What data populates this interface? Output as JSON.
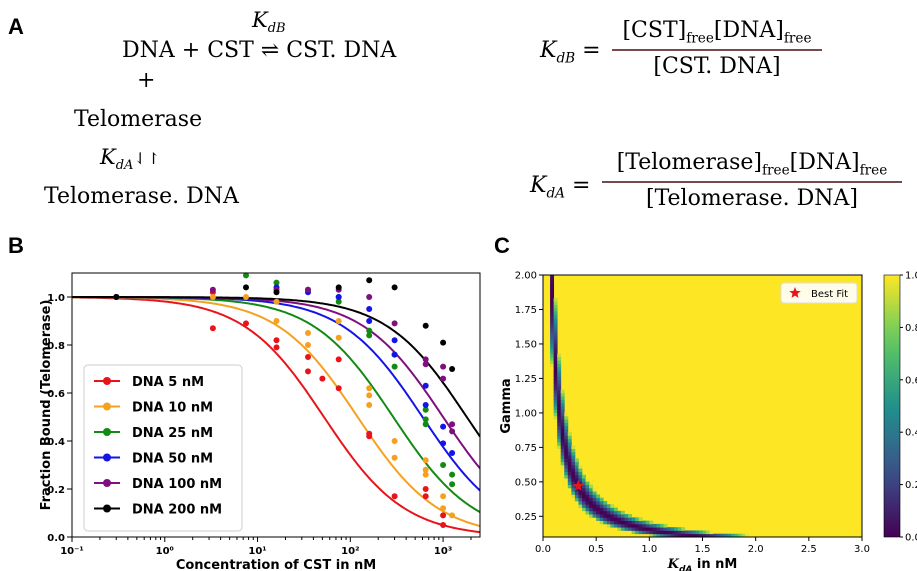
{
  "panelA": {
    "letter": "A",
    "kdb_label": "K",
    "kdb_sub": "dB",
    "rxn1": "DNA + CST  ⇌ CST. DNA",
    "plus": "+",
    "telomerase": "Telomerase",
    "kda_label": "K",
    "kda_sub": "dA",
    "kda_arrow": "⇃↾",
    "telo_dna": "Telomerase. DNA",
    "eq1_lhs": "K",
    "eq1_lhs_sub": "dB",
    "eq1_num": "[CST]free[DNA]free",
    "eq1_num_a": "[CST]",
    "eq1_num_b": "free",
    "eq1_num_c": "[DNA]",
    "eq1_num_d": "free",
    "eq1_den": "[CST. DNA]",
    "eq2_lhs": "K",
    "eq2_lhs_sub": "dA",
    "eq2_num_a": "[Telomerase]",
    "eq2_num_b": "free",
    "eq2_num_c": "[DNA]",
    "eq2_num_d": "free",
    "eq2_den": "[Telomerase. DNA]"
  },
  "panelB": {
    "letter": "B"
  },
  "panelC": {
    "letter": "C"
  },
  "chart_data": [
    {
      "type": "line",
      "xlabel": "Concentration of CST in nM",
      "ylabel": "Fraction Bound (Telomerase)",
      "xscale": "log",
      "xlim": [
        0.1,
        2500
      ],
      "ylim": [
        0.0,
        1.1
      ],
      "xticks": [
        "10⁻¹",
        "10⁰",
        "10¹",
        "10²",
        "10³"
      ],
      "yticks": [
        "0.0",
        "0.2",
        "0.4",
        "0.6",
        "0.8",
        "1.0"
      ],
      "legend_position": "lower-left",
      "series": [
        {
          "name": "DNA 5 nM",
          "color": "#e8141b",
          "ec50": 52,
          "points": [
            [
              0.3,
              1.0
            ],
            [
              3.3,
              1.02
            ],
            [
              3.3,
              0.87
            ],
            [
              7.5,
              0.89
            ],
            [
              16,
              0.82
            ],
            [
              16,
              0.79
            ],
            [
              35,
              0.75
            ],
            [
              35,
              0.69
            ],
            [
              50,
              0.66
            ],
            [
              75,
              0.62
            ],
            [
              75,
              0.74
            ],
            [
              160,
              0.42
            ],
            [
              160,
              0.43
            ],
            [
              300,
              0.17
            ],
            [
              650,
              0.2
            ],
            [
              650,
              0.17
            ],
            [
              1000,
              0.05
            ],
            [
              1000,
              0.09
            ]
          ]
        },
        {
          "name": "DNA 10 nM",
          "color": "#f5a11f",
          "ec50": 120,
          "points": [
            [
              0.3,
              1.0
            ],
            [
              3.3,
              1.0
            ],
            [
              7.5,
              1.0
            ],
            [
              16,
              0.98
            ],
            [
              16,
              0.9
            ],
            [
              35,
              0.85
            ],
            [
              35,
              0.8
            ],
            [
              75,
              0.9
            ],
            [
              75,
              0.83
            ],
            [
              160,
              0.62
            ],
            [
              160,
              0.59
            ],
            [
              160,
              0.55
            ],
            [
              300,
              0.4
            ],
            [
              300,
              0.33
            ],
            [
              650,
              0.32
            ],
            [
              650,
              0.28
            ],
            [
              650,
              0.26
            ],
            [
              1000,
              0.17
            ],
            [
              1000,
              0.12
            ],
            [
              1250,
              0.09
            ]
          ]
        },
        {
          "name": "DNA 25 nM",
          "color": "#138a13",
          "ec50": 290,
          "points": [
            [
              0.3,
              1.0
            ],
            [
              7.5,
              1.09
            ],
            [
              16,
              1.06
            ],
            [
              35,
              1.03
            ],
            [
              75,
              1.0
            ],
            [
              75,
              0.98
            ],
            [
              160,
              0.86
            ],
            [
              160,
              0.84
            ],
            [
              300,
              0.76
            ],
            [
              300,
              0.71
            ],
            [
              650,
              0.53
            ],
            [
              650,
              0.49
            ],
            [
              650,
              0.47
            ],
            [
              1000,
              0.3
            ],
            [
              1250,
              0.26
            ],
            [
              1250,
              0.22
            ]
          ]
        },
        {
          "name": "DNA 50 nM",
          "color": "#1414e8",
          "ec50": 600,
          "points": [
            [
              0.3,
              1.0
            ],
            [
              16,
              1.04
            ],
            [
              35,
              1.02
            ],
            [
              75,
              1.0
            ],
            [
              160,
              0.95
            ],
            [
              160,
              0.9
            ],
            [
              300,
              0.82
            ],
            [
              300,
              0.76
            ],
            [
              650,
              0.63
            ],
            [
              650,
              0.55
            ],
            [
              1000,
              0.46
            ],
            [
              1000,
              0.39
            ],
            [
              1250,
              0.35
            ]
          ]
        },
        {
          "name": "DNA 100 nM",
          "color": "#7f0f7f",
          "ec50": 1000,
          "points": [
            [
              0.3,
              1.0
            ],
            [
              3.3,
              1.03
            ],
            [
              16,
              1.03
            ],
            [
              35,
              1.03
            ],
            [
              75,
              1.03
            ],
            [
              160,
              1.0
            ],
            [
              300,
              0.89
            ],
            [
              650,
              0.74
            ],
            [
              650,
              0.72
            ],
            [
              1000,
              0.71
            ],
            [
              1000,
              0.66
            ],
            [
              1250,
              0.47
            ],
            [
              1250,
              0.44
            ]
          ]
        },
        {
          "name": "DNA 200 nM",
          "color": "#000000",
          "ec50": 1800,
          "points": [
            [
              0.3,
              1.0
            ],
            [
              7.5,
              1.04
            ],
            [
              16,
              1.02
            ],
            [
              75,
              1.04
            ],
            [
              160,
              1.07
            ],
            [
              300,
              1.04
            ],
            [
              650,
              0.88
            ],
            [
              1000,
              0.81
            ],
            [
              1250,
              0.7
            ]
          ]
        }
      ]
    },
    {
      "type": "heatmap",
      "xlabel": "K",
      "xlabel_sub": "dA",
      "xlabel_suffix": " in nM",
      "ylabel": "Gamma",
      "xlim": [
        0.0,
        3.0
      ],
      "ylim": [
        0.1,
        2.0
      ],
      "xticks": [
        "0.0",
        "0.5",
        "1.0",
        "1.5",
        "2.0",
        "2.5",
        "3.0"
      ],
      "yticks": [
        "0.25",
        "0.50",
        "0.75",
        "1.00",
        "1.25",
        "1.50",
        "1.75",
        "2.00"
      ],
      "colorbar_ticks": [
        "0.0",
        "0.2",
        "0.4",
        "0.6",
        "0.8",
        "1.0"
      ],
      "colorbar_range": [
        0.0,
        1.0
      ],
      "colormap": "viridis",
      "minimum_valley": "gamma ≈ 0.155 / Kd",
      "best_fit": {
        "label": "Best Fit",
        "x": 0.33,
        "y": 0.47,
        "color": "#e8141b"
      },
      "legend_position": "upper-right"
    }
  ]
}
